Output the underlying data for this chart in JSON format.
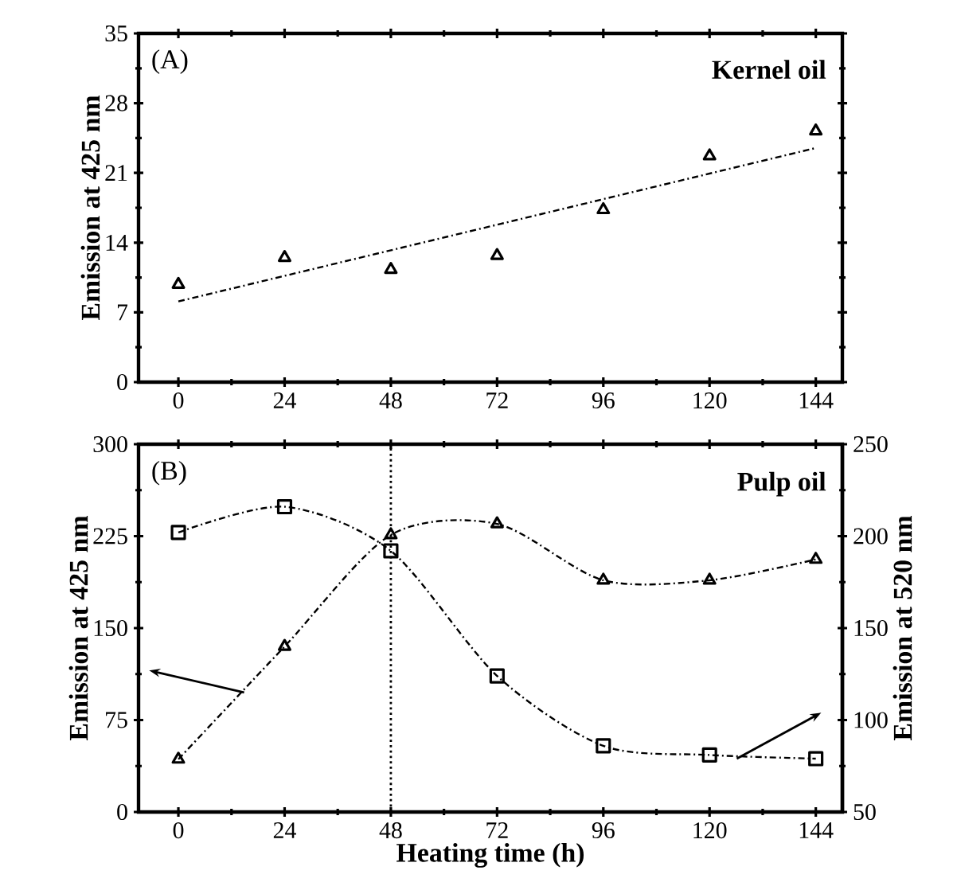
{
  "chart_data": [
    {
      "type": "scatter",
      "ylabel": "Emission at 425 nm",
      "annotations": [
        "(A)",
        "Kernel oil"
      ],
      "xlim": [
        -9,
        150
      ],
      "xticks": [
        0,
        24,
        48,
        72,
        96,
        120,
        144
      ],
      "ylim": [
        0,
        35
      ],
      "yticks": [
        0,
        7,
        14,
        21,
        28,
        35
      ],
      "grid": false,
      "series": [
        {
          "color": "#000000",
          "marker": "triangle",
          "x": [
            0,
            24,
            48,
            72,
            96,
            120,
            144
          ],
          "values": [
            9.8,
            12.5,
            11.3,
            12.7,
            17.3,
            22.7,
            25.2
          ]
        },
        {
          "type": "line",
          "color": "#000000",
          "marker": "none",
          "line_style": "dashdot",
          "x": [
            0,
            144
          ],
          "values": [
            8.1,
            23.5
          ]
        }
      ]
    },
    {
      "type": "line",
      "xlabel": "Heating time (h)",
      "ylabel": "Emission at 425 nm",
      "y2label": "Emission at 520 nm",
      "annotations": [
        "(B)",
        "Pulp oil"
      ],
      "xlim": [
        -9,
        150
      ],
      "xticks": [
        0,
        24,
        48,
        72,
        96,
        120,
        144
      ],
      "ylim": [
        0,
        300
      ],
      "yticks": [
        0,
        75,
        150,
        225,
        300
      ],
      "y2lim": [
        50,
        250
      ],
      "y2ticks": [
        50,
        100,
        150,
        200,
        250
      ],
      "grid": false,
      "ref_lines": [
        {
          "axis": "x",
          "value": 48,
          "line_style": "dotted",
          "color": "#000000"
        }
      ],
      "series": [
        {
          "axis": "y",
          "color": "#000000",
          "marker": "triangle",
          "line_style": "dashdot",
          "x": [
            0,
            24,
            48,
            72,
            96,
            120,
            144
          ],
          "values": [
            43,
            135,
            226,
            235,
            189,
            189,
            206
          ]
        },
        {
          "axis": "y2",
          "color": "#000000",
          "marker": "square",
          "line_style": "dashdot",
          "x": [
            0,
            24,
            48,
            72,
            96,
            120,
            144
          ],
          "values": [
            202,
            216,
            192,
            124,
            86,
            81,
            79
          ]
        }
      ]
    }
  ]
}
